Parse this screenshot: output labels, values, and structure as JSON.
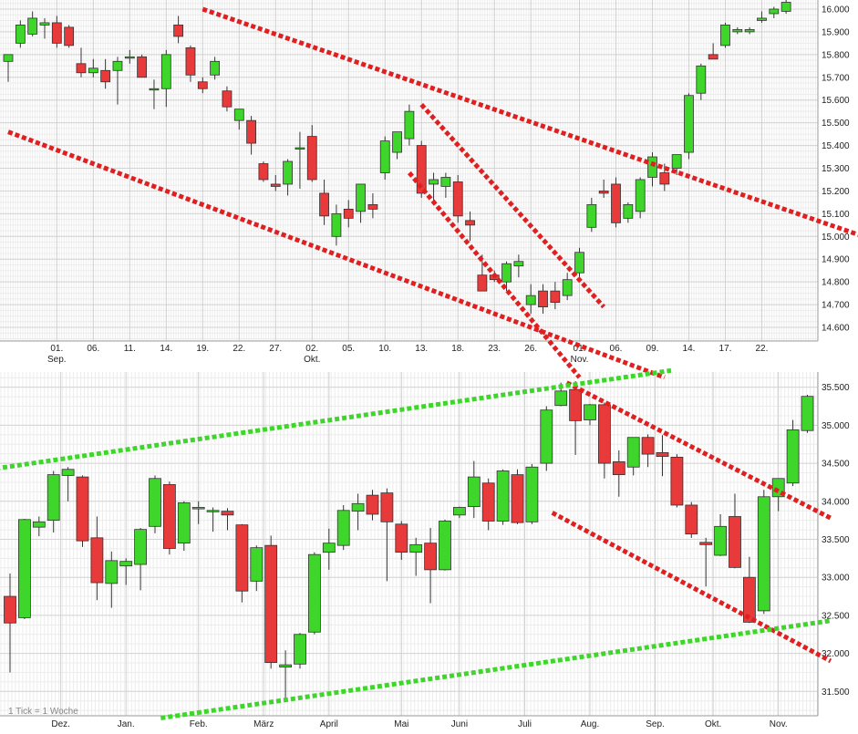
{
  "chart_data": [
    {
      "type": "candlestick",
      "id": "daily",
      "title": "",
      "y_axis_position": "right",
      "ylim": [
        14540,
        16040
      ],
      "y_ticks": [
        "16.000",
        "15.900",
        "15.800",
        "15.700",
        "15.600",
        "15.500",
        "15.400",
        "15.300",
        "15.200",
        "15.100",
        "15.000",
        "14.900",
        "14.800",
        "14.700",
        "14.600"
      ],
      "y_tick_values": [
        16000,
        15900,
        15800,
        15700,
        15600,
        15500,
        15400,
        15300,
        15200,
        15100,
        15000,
        14900,
        14800,
        14700,
        14600
      ],
      "x_ticks": [
        {
          "label": "01.",
          "sub": "Sep.",
          "i": 4
        },
        {
          "label": "06.",
          "sub": "",
          "i": 7
        },
        {
          "label": "11.",
          "sub": "",
          "i": 10
        },
        {
          "label": "14.",
          "sub": "",
          "i": 13
        },
        {
          "label": "19.",
          "sub": "",
          "i": 16
        },
        {
          "label": "22.",
          "sub": "",
          "i": 19
        },
        {
          "label": "27.",
          "sub": "",
          "i": 22
        },
        {
          "label": "02.",
          "sub": "Okt.",
          "i": 25
        },
        {
          "label": "05.",
          "sub": "",
          "i": 28
        },
        {
          "label": "10.",
          "sub": "",
          "i": 31
        },
        {
          "label": "13.",
          "sub": "",
          "i": 34
        },
        {
          "label": "18.",
          "sub": "",
          "i": 37
        },
        {
          "label": "23.",
          "sub": "",
          "i": 40
        },
        {
          "label": "26.",
          "sub": "",
          "i": 43
        },
        {
          "label": "01.",
          "sub": "Nov.",
          "i": 47
        },
        {
          "label": "06.",
          "sub": "",
          "i": 50
        },
        {
          "label": "09.",
          "sub": "",
          "i": 53
        },
        {
          "label": "14.",
          "sub": "",
          "i": 56
        },
        {
          "label": "17.",
          "sub": "",
          "i": 59
        },
        {
          "label": "22.",
          "sub": "",
          "i": 62
        }
      ],
      "candles": [
        {
          "o": 15770,
          "h": 15800,
          "l": 15680,
          "c": 15800
        },
        {
          "o": 15850,
          "h": 15950,
          "l": 15830,
          "c": 15930
        },
        {
          "o": 15890,
          "h": 15990,
          "l": 15880,
          "c": 15960
        },
        {
          "o": 15930,
          "h": 15960,
          "l": 15870,
          "c": 15940
        },
        {
          "o": 15940,
          "h": 15970,
          "l": 15830,
          "c": 15850
        },
        {
          "o": 15920,
          "h": 15930,
          "l": 15830,
          "c": 15840
        },
        {
          "o": 15760,
          "h": 15830,
          "l": 15700,
          "c": 15720
        },
        {
          "o": 15720,
          "h": 15780,
          "l": 15700,
          "c": 15740
        },
        {
          "o": 15730,
          "h": 15780,
          "l": 15650,
          "c": 15680
        },
        {
          "o": 15730,
          "h": 15790,
          "l": 15580,
          "c": 15770
        },
        {
          "o": 15790,
          "h": 15820,
          "l": 15760,
          "c": 15790
        },
        {
          "o": 15790,
          "h": 15800,
          "l": 15700,
          "c": 15700
        },
        {
          "o": 15650,
          "h": 15690,
          "l": 15560,
          "c": 15650
        },
        {
          "o": 15650,
          "h": 15820,
          "l": 15570,
          "c": 15800
        },
        {
          "o": 15930,
          "h": 15970,
          "l": 15850,
          "c": 15880
        },
        {
          "o": 15830,
          "h": 15840,
          "l": 15680,
          "c": 15710
        },
        {
          "o": 15680,
          "h": 15700,
          "l": 15630,
          "c": 15650
        },
        {
          "o": 15710,
          "h": 15790,
          "l": 15690,
          "c": 15770
        },
        {
          "o": 15640,
          "h": 15660,
          "l": 15550,
          "c": 15570
        },
        {
          "o": 15510,
          "h": 15550,
          "l": 15470,
          "c": 15560
        },
        {
          "o": 15510,
          "h": 15530,
          "l": 15360,
          "c": 15410
        },
        {
          "o": 15320,
          "h": 15330,
          "l": 15240,
          "c": 15250
        },
        {
          "o": 15230,
          "h": 15270,
          "l": 15200,
          "c": 15220
        },
        {
          "o": 15230,
          "h": 15340,
          "l": 15180,
          "c": 15330
        },
        {
          "o": 15390,
          "h": 15460,
          "l": 15210,
          "c": 15390
        },
        {
          "o": 15440,
          "h": 15490,
          "l": 15240,
          "c": 15250
        },
        {
          "o": 15190,
          "h": 15250,
          "l": 15050,
          "c": 15090
        },
        {
          "o": 15000,
          "h": 15140,
          "l": 14960,
          "c": 15100
        },
        {
          "o": 15120,
          "h": 15160,
          "l": 15040,
          "c": 15080
        },
        {
          "o": 15110,
          "h": 15230,
          "l": 15060,
          "c": 15230
        },
        {
          "o": 15140,
          "h": 15190,
          "l": 15080,
          "c": 15120
        },
        {
          "o": 15280,
          "h": 15440,
          "l": 15250,
          "c": 15420
        },
        {
          "o": 15370,
          "h": 15460,
          "l": 15340,
          "c": 15460
        },
        {
          "o": 15430,
          "h": 15580,
          "l": 15400,
          "c": 15550
        },
        {
          "o": 15400,
          "h": 15420,
          "l": 15170,
          "c": 15190
        },
        {
          "o": 15230,
          "h": 15280,
          "l": 15140,
          "c": 15250
        },
        {
          "o": 15220,
          "h": 15280,
          "l": 15170,
          "c": 15260
        },
        {
          "o": 15240,
          "h": 15270,
          "l": 15060,
          "c": 15090
        },
        {
          "o": 15070,
          "h": 15110,
          "l": 14980,
          "c": 15050
        },
        {
          "o": 14830,
          "h": 14920,
          "l": 14770,
          "c": 14760
        },
        {
          "o": 14830,
          "h": 14850,
          "l": 14800,
          "c": 14810
        },
        {
          "o": 14800,
          "h": 14890,
          "l": 14760,
          "c": 14880
        },
        {
          "o": 14870,
          "h": 14920,
          "l": 14820,
          "c": 14890
        },
        {
          "o": 14700,
          "h": 14790,
          "l": 14660,
          "c": 14740
        },
        {
          "o": 14760,
          "h": 14790,
          "l": 14660,
          "c": 14690
        },
        {
          "o": 14760,
          "h": 14800,
          "l": 14680,
          "c": 14710
        },
        {
          "o": 14740,
          "h": 14840,
          "l": 14720,
          "c": 14810
        },
        {
          "o": 14840,
          "h": 14950,
          "l": 14820,
          "c": 14930
        },
        {
          "o": 15040,
          "h": 15170,
          "l": 15020,
          "c": 15140
        },
        {
          "o": 15200,
          "h": 15250,
          "l": 15170,
          "c": 15190
        },
        {
          "o": 15230,
          "h": 15260,
          "l": 15040,
          "c": 15060
        },
        {
          "o": 15080,
          "h": 15150,
          "l": 15060,
          "c": 15140
        },
        {
          "o": 15110,
          "h": 15260,
          "l": 15080,
          "c": 15250
        },
        {
          "o": 15260,
          "h": 15370,
          "l": 15220,
          "c": 15350
        },
        {
          "o": 15280,
          "h": 15320,
          "l": 15200,
          "c": 15230
        },
        {
          "o": 15300,
          "h": 15360,
          "l": 15270,
          "c": 15360
        },
        {
          "o": 15370,
          "h": 15630,
          "l": 15340,
          "c": 15620
        },
        {
          "o": 15630,
          "h": 15760,
          "l": 15600,
          "c": 15750
        },
        {
          "o": 15800,
          "h": 15850,
          "l": 15780,
          "c": 15780
        },
        {
          "o": 15840,
          "h": 15940,
          "l": 15830,
          "c": 15930
        },
        {
          "o": 15900,
          "h": 15920,
          "l": 15890,
          "c": 15910
        },
        {
          "o": 15900,
          "h": 15920,
          "l": 15890,
          "c": 15910
        },
        {
          "o": 15950,
          "h": 15990,
          "l": 15940,
          "c": 15960
        },
        {
          "o": 15980,
          "h": 16010,
          "l": 15960,
          "c": 16000
        },
        {
          "o": 15990,
          "h": 16040,
          "l": 15980,
          "c": 16030
        }
      ],
      "trendlines": [
        {
          "color": "#e02020",
          "from": {
            "i": 16,
            "v": 16000
          },
          "to": {
            "i": 72,
            "v": 14970
          }
        },
        {
          "color": "#e02020",
          "from": {
            "i": 0,
            "v": 15460
          },
          "to": {
            "i": 54,
            "v": 14380
          }
        },
        {
          "color": "#e02020",
          "from": {
            "i": 34,
            "v": 15580
          },
          "to": {
            "i": 49,
            "v": 14690
          }
        },
        {
          "color": "#e02020",
          "from": {
            "i": 33,
            "v": 15280
          },
          "to": {
            "i": 47,
            "v": 14380
          }
        }
      ]
    },
    {
      "type": "candlestick",
      "id": "weekly",
      "title": "",
      "note": "1 Tick = 1 Woche",
      "y_axis_position": "right",
      "ylim": [
        31180,
        35700
      ],
      "y_ticks": [
        "35.500",
        "35.000",
        "34.500",
        "34.000",
        "33.500",
        "33.000",
        "32.500",
        "32.000",
        "31.500"
      ],
      "y_tick_values": [
        35500,
        35000,
        34500,
        34000,
        33500,
        33000,
        32500,
        32000,
        31500
      ],
      "x_ticks": [
        {
          "label": "Dez.",
          "i": 3.5
        },
        {
          "label": "Jan.",
          "i": 8
        },
        {
          "label": "Feb.",
          "i": 13
        },
        {
          "label": "März",
          "i": 17.5
        },
        {
          "label": "April",
          "i": 22
        },
        {
          "label": "Mai",
          "i": 27
        },
        {
          "label": "Juni",
          "i": 31
        },
        {
          "label": "Juli",
          "i": 35.5
        },
        {
          "label": "Aug.",
          "i": 40
        },
        {
          "label": "Sep.",
          "i": 44.5
        },
        {
          "label": "Okt.",
          "i": 48.5
        },
        {
          "label": "Nov.",
          "i": 53
        }
      ],
      "candles": [
        {
          "o": 32750,
          "h": 33050,
          "l": 31750,
          "c": 32400
        },
        {
          "o": 32470,
          "h": 33770,
          "l": 32450,
          "c": 33760
        },
        {
          "o": 33660,
          "h": 33800,
          "l": 33540,
          "c": 33730
        },
        {
          "o": 33750,
          "h": 34400,
          "l": 33590,
          "c": 34350
        },
        {
          "o": 34340,
          "h": 34450,
          "l": 34000,
          "c": 34420
        },
        {
          "o": 34320,
          "h": 34340,
          "l": 33400,
          "c": 33480
        },
        {
          "o": 33520,
          "h": 33800,
          "l": 32700,
          "c": 32930
        },
        {
          "o": 32920,
          "h": 33340,
          "l": 32600,
          "c": 33220
        },
        {
          "o": 33150,
          "h": 33250,
          "l": 32900,
          "c": 33210
        },
        {
          "o": 33170,
          "h": 33650,
          "l": 32830,
          "c": 33630
        },
        {
          "o": 33670,
          "h": 34340,
          "l": 33580,
          "c": 34300
        },
        {
          "o": 34220,
          "h": 34260,
          "l": 33300,
          "c": 33380
        },
        {
          "o": 33450,
          "h": 34000,
          "l": 33350,
          "c": 33980
        },
        {
          "o": 33900,
          "h": 34000,
          "l": 33700,
          "c": 33920
        },
        {
          "o": 33880,
          "h": 33920,
          "l": 33600,
          "c": 33880
        },
        {
          "o": 33870,
          "h": 33910,
          "l": 33620,
          "c": 33820
        },
        {
          "o": 33690,
          "h": 33700,
          "l": 32670,
          "c": 32820
        },
        {
          "o": 32950,
          "h": 33420,
          "l": 32820,
          "c": 33390
        },
        {
          "o": 33420,
          "h": 33550,
          "l": 31800,
          "c": 31880
        },
        {
          "o": 31820,
          "h": 32040,
          "l": 31380,
          "c": 31850
        },
        {
          "o": 31860,
          "h": 32270,
          "l": 31800,
          "c": 32250
        },
        {
          "o": 32280,
          "h": 33330,
          "l": 32250,
          "c": 33300
        },
        {
          "o": 33330,
          "h": 33640,
          "l": 33100,
          "c": 33450
        },
        {
          "o": 33420,
          "h": 33950,
          "l": 33360,
          "c": 33880
        },
        {
          "o": 33870,
          "h": 34100,
          "l": 33620,
          "c": 33970
        },
        {
          "o": 34080,
          "h": 34150,
          "l": 33750,
          "c": 33830
        },
        {
          "o": 34110,
          "h": 34170,
          "l": 32950,
          "c": 33730
        },
        {
          "o": 33700,
          "h": 33740,
          "l": 33230,
          "c": 33330
        },
        {
          "o": 33330,
          "h": 33520,
          "l": 33020,
          "c": 33430
        },
        {
          "o": 33450,
          "h": 33650,
          "l": 32660,
          "c": 33100
        },
        {
          "o": 33100,
          "h": 33760,
          "l": 33090,
          "c": 33740
        },
        {
          "o": 33820,
          "h": 33930,
          "l": 33780,
          "c": 33920
        },
        {
          "o": 33930,
          "h": 34530,
          "l": 33780,
          "c": 34320
        },
        {
          "o": 34240,
          "h": 34300,
          "l": 33620,
          "c": 33740
        },
        {
          "o": 33740,
          "h": 34420,
          "l": 33690,
          "c": 34400
        },
        {
          "o": 34350,
          "h": 34420,
          "l": 33700,
          "c": 33720
        },
        {
          "o": 33730,
          "h": 34490,
          "l": 33700,
          "c": 34450
        },
        {
          "o": 34500,
          "h": 35250,
          "l": 34400,
          "c": 35200
        },
        {
          "o": 35260,
          "h": 35560,
          "l": 35250,
          "c": 35450
        },
        {
          "o": 35470,
          "h": 35580,
          "l": 34610,
          "c": 35060
        },
        {
          "o": 35070,
          "h": 35280,
          "l": 35000,
          "c": 35270
        },
        {
          "o": 35270,
          "h": 35300,
          "l": 34300,
          "c": 34500
        },
        {
          "o": 34520,
          "h": 34670,
          "l": 34060,
          "c": 34350
        },
        {
          "o": 34450,
          "h": 34830,
          "l": 34340,
          "c": 34840
        },
        {
          "o": 34840,
          "h": 34880,
          "l": 34450,
          "c": 34620
        },
        {
          "o": 34640,
          "h": 34870,
          "l": 34330,
          "c": 34590
        },
        {
          "o": 34580,
          "h": 34620,
          "l": 33920,
          "c": 33950
        },
        {
          "o": 33950,
          "h": 33990,
          "l": 33520,
          "c": 33570
        },
        {
          "o": 33460,
          "h": 33520,
          "l": 32880,
          "c": 33430
        },
        {
          "o": 33290,
          "h": 33830,
          "l": 33280,
          "c": 33670
        },
        {
          "o": 33800,
          "h": 34100,
          "l": 33120,
          "c": 33130
        },
        {
          "o": 33000,
          "h": 33270,
          "l": 32400,
          "c": 32410
        },
        {
          "o": 32560,
          "h": 34150,
          "l": 32520,
          "c": 34060
        },
        {
          "o": 34060,
          "h": 34300,
          "l": 33870,
          "c": 34300
        },
        {
          "o": 34240,
          "h": 35070,
          "l": 34200,
          "c": 34940
        },
        {
          "o": 34930,
          "h": 35400,
          "l": 34900,
          "c": 35380
        }
      ],
      "trendlines": [
        {
          "color": "#e02020",
          "from": {
            "i": 38.4,
            "v": 35560
          },
          "to": {
            "i": 56.6,
            "v": 33780
          }
        },
        {
          "color": "#e02020",
          "from": {
            "i": 37.4,
            "v": 33850
          },
          "to": {
            "i": 56.6,
            "v": 31900
          }
        },
        {
          "color": "#3ed62a",
          "from": {
            "i": -1,
            "v": 34430
          },
          "to": {
            "i": 45.6,
            "v": 35720
          }
        },
        {
          "color": "#3ed62a",
          "from": {
            "i": 10.4,
            "v": 31150
          },
          "to": {
            "i": 56.6,
            "v": 32430
          }
        }
      ]
    }
  ]
}
